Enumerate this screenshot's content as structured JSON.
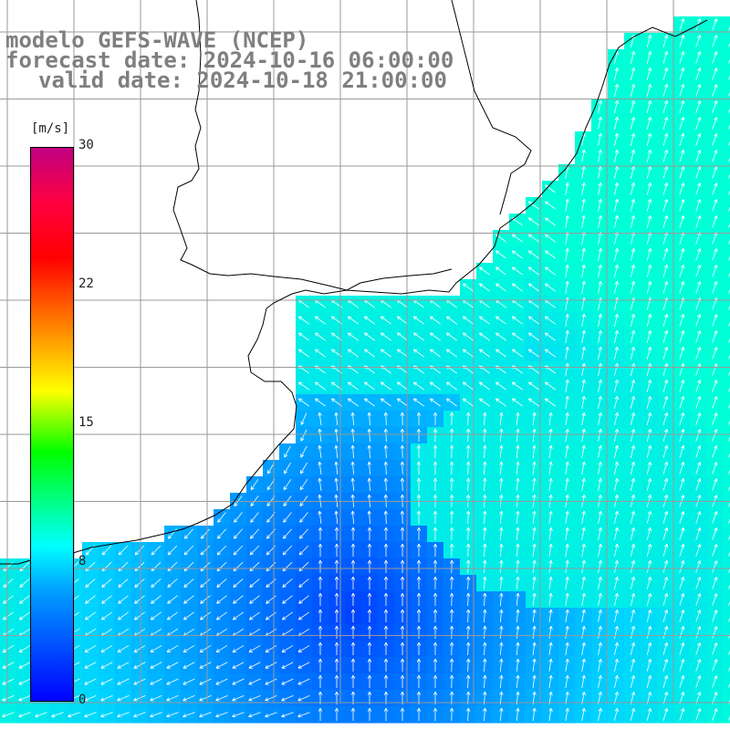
{
  "title": {
    "line1": "modelo GEFS-WAVE (NCEP)",
    "line2": "forecast date: 2024-10-16 06:00:00",
    "line3": "valid date: 2024-10-18 21:00:00"
  },
  "colorbar": {
    "unit": "[m/s]",
    "ticks": [
      "30",
      "22",
      "15",
      "8",
      "0"
    ]
  },
  "colors": {
    "land": "#ffffff",
    "coast": "#000000",
    "grid": "#9a9a9a",
    "arrow": "#ffffff",
    "title": "#7f7f7f"
  }
}
